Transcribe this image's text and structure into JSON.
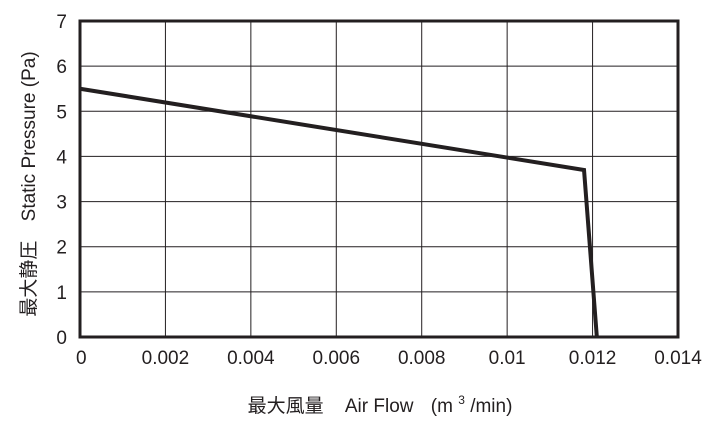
{
  "chart_data": {
    "type": "line",
    "x_ticks": [
      0,
      0.002,
      0.004,
      0.006,
      0.008,
      0.01,
      0.012,
      0.014
    ],
    "x_tick_labels": [
      "0",
      "0.002",
      "0.004",
      "0.006",
      "0.008",
      "0.01",
      "0.012",
      "0.014"
    ],
    "y_ticks": [
      0,
      1,
      2,
      3,
      4,
      5,
      6,
      7
    ],
    "y_tick_labels": [
      "0",
      "1",
      "2",
      "3",
      "4",
      "5",
      "6",
      "7"
    ],
    "xlim": [
      0,
      0.014
    ],
    "ylim": [
      0,
      7
    ],
    "grid": true,
    "xlabel_cjk": "最大風量",
    "xlabel_en": "Air Flow",
    "xlabel_unit_pre": "(m",
    "xlabel_unit_sup": "3",
    "xlabel_unit_post": "/min)",
    "ylabel_cjk": "最大静圧",
    "ylabel_en": "Static Pressure (Pa)",
    "series": [
      {
        "x": [
          0,
          0.0118,
          0.0121
        ],
        "y": [
          5.5,
          3.7,
          0
        ]
      }
    ],
    "line_color": "#231f20"
  }
}
